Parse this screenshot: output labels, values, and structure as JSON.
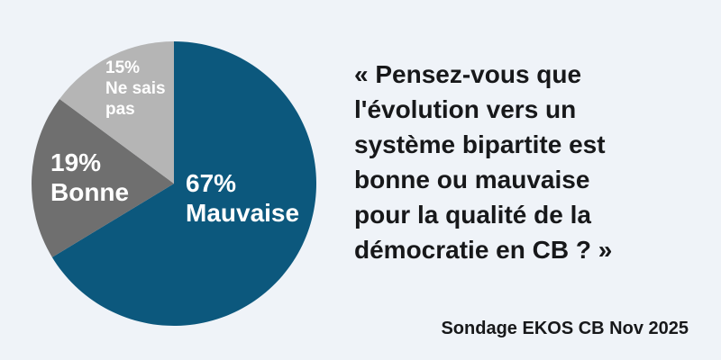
{
  "page": {
    "background_color": "#eff3f8",
    "text_color": "#17181a"
  },
  "chart_data": {
    "type": "pie",
    "categories": [
      "Mauvaise",
      "Bonne",
      "Ne sais pas"
    ],
    "values": [
      67,
      19,
      15
    ],
    "colors": [
      "#0c587d",
      "#6f6f6f",
      "#b5b5b5"
    ],
    "start_angle_deg": 0,
    "direction": "clockwise",
    "value_labels": [
      "67%",
      "19%",
      "15%"
    ],
    "label_text_color": "#ffffff",
    "legend_position": "none",
    "labels_inside_slices": true
  },
  "pie_labels": {
    "mauvaise": "67%\nMauvaise",
    "bonne": "19%\nBonne",
    "ne_sais_pas": "15%\nNe sais\npas"
  },
  "quote": {
    "text": "« Pensez-vous que\nl'évolution vers un\nsystème bipartite est\nbonne ou mauvaise\npour la qualité de la\ndémocratie en CB ? »"
  },
  "attribution": {
    "text": "Sondage EKOS CB Nov 2025"
  }
}
